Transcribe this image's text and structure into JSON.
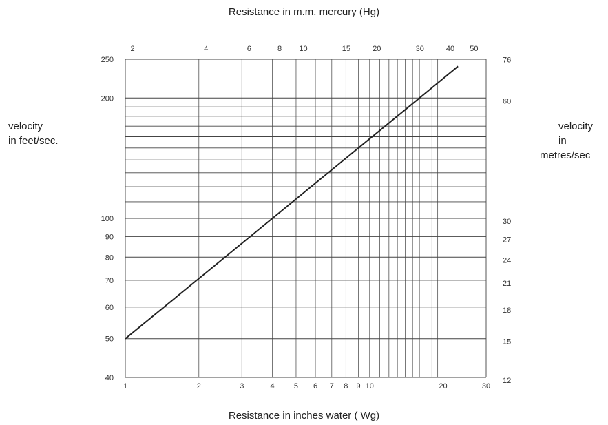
{
  "chart_data": {
    "type": "line",
    "title_top": "Resistance in m.m. mercury (Hg)",
    "xlabel": "Resistance in inches water ( Wg)",
    "ylabel_left": [
      "velocity",
      "in feet/sec."
    ],
    "ylabel_right": [
      "velocity",
      "in",
      "metres/sec"
    ],
    "x_scale": "log",
    "y_scale": "log",
    "xlim": [
      1,
      30
    ],
    "ylim": [
      40,
      250
    ],
    "grid": true,
    "x_ticks": [
      1,
      2,
      3,
      4,
      5,
      6,
      7,
      8,
      9,
      10,
      20,
      30
    ],
    "x_tick_labels": [
      "1",
      "2",
      "3",
      "4",
      "5",
      "6",
      "7",
      "8",
      "9",
      "10",
      "20",
      "30"
    ],
    "top_ticks": [
      2,
      4,
      6,
      8,
      10,
      15,
      20,
      30,
      40,
      50
    ],
    "top_tick_labels": [
      "2",
      "4",
      "6",
      "8",
      "10",
      "15",
      "20",
      "30",
      "40",
      "50"
    ],
    "left_ticks": [
      40,
      50,
      60,
      70,
      80,
      90,
      100,
      200,
      250
    ],
    "left_tick_labels": [
      "40",
      "50",
      "60",
      "70",
      "80",
      "90",
      "100",
      "200",
      "250"
    ],
    "right_ticks": [
      12,
      15,
      18,
      21,
      24,
      27,
      30,
      60,
      76
    ],
    "right_tick_labels": [
      "12",
      "15",
      "18",
      "21",
      "24",
      "27",
      "30",
      "60",
      "76"
    ],
    "series": [
      {
        "x": [
          1,
          2,
          4,
          16,
          23
        ],
        "y": [
          50,
          70.7,
          100,
          200,
          240
        ]
      }
    ]
  }
}
